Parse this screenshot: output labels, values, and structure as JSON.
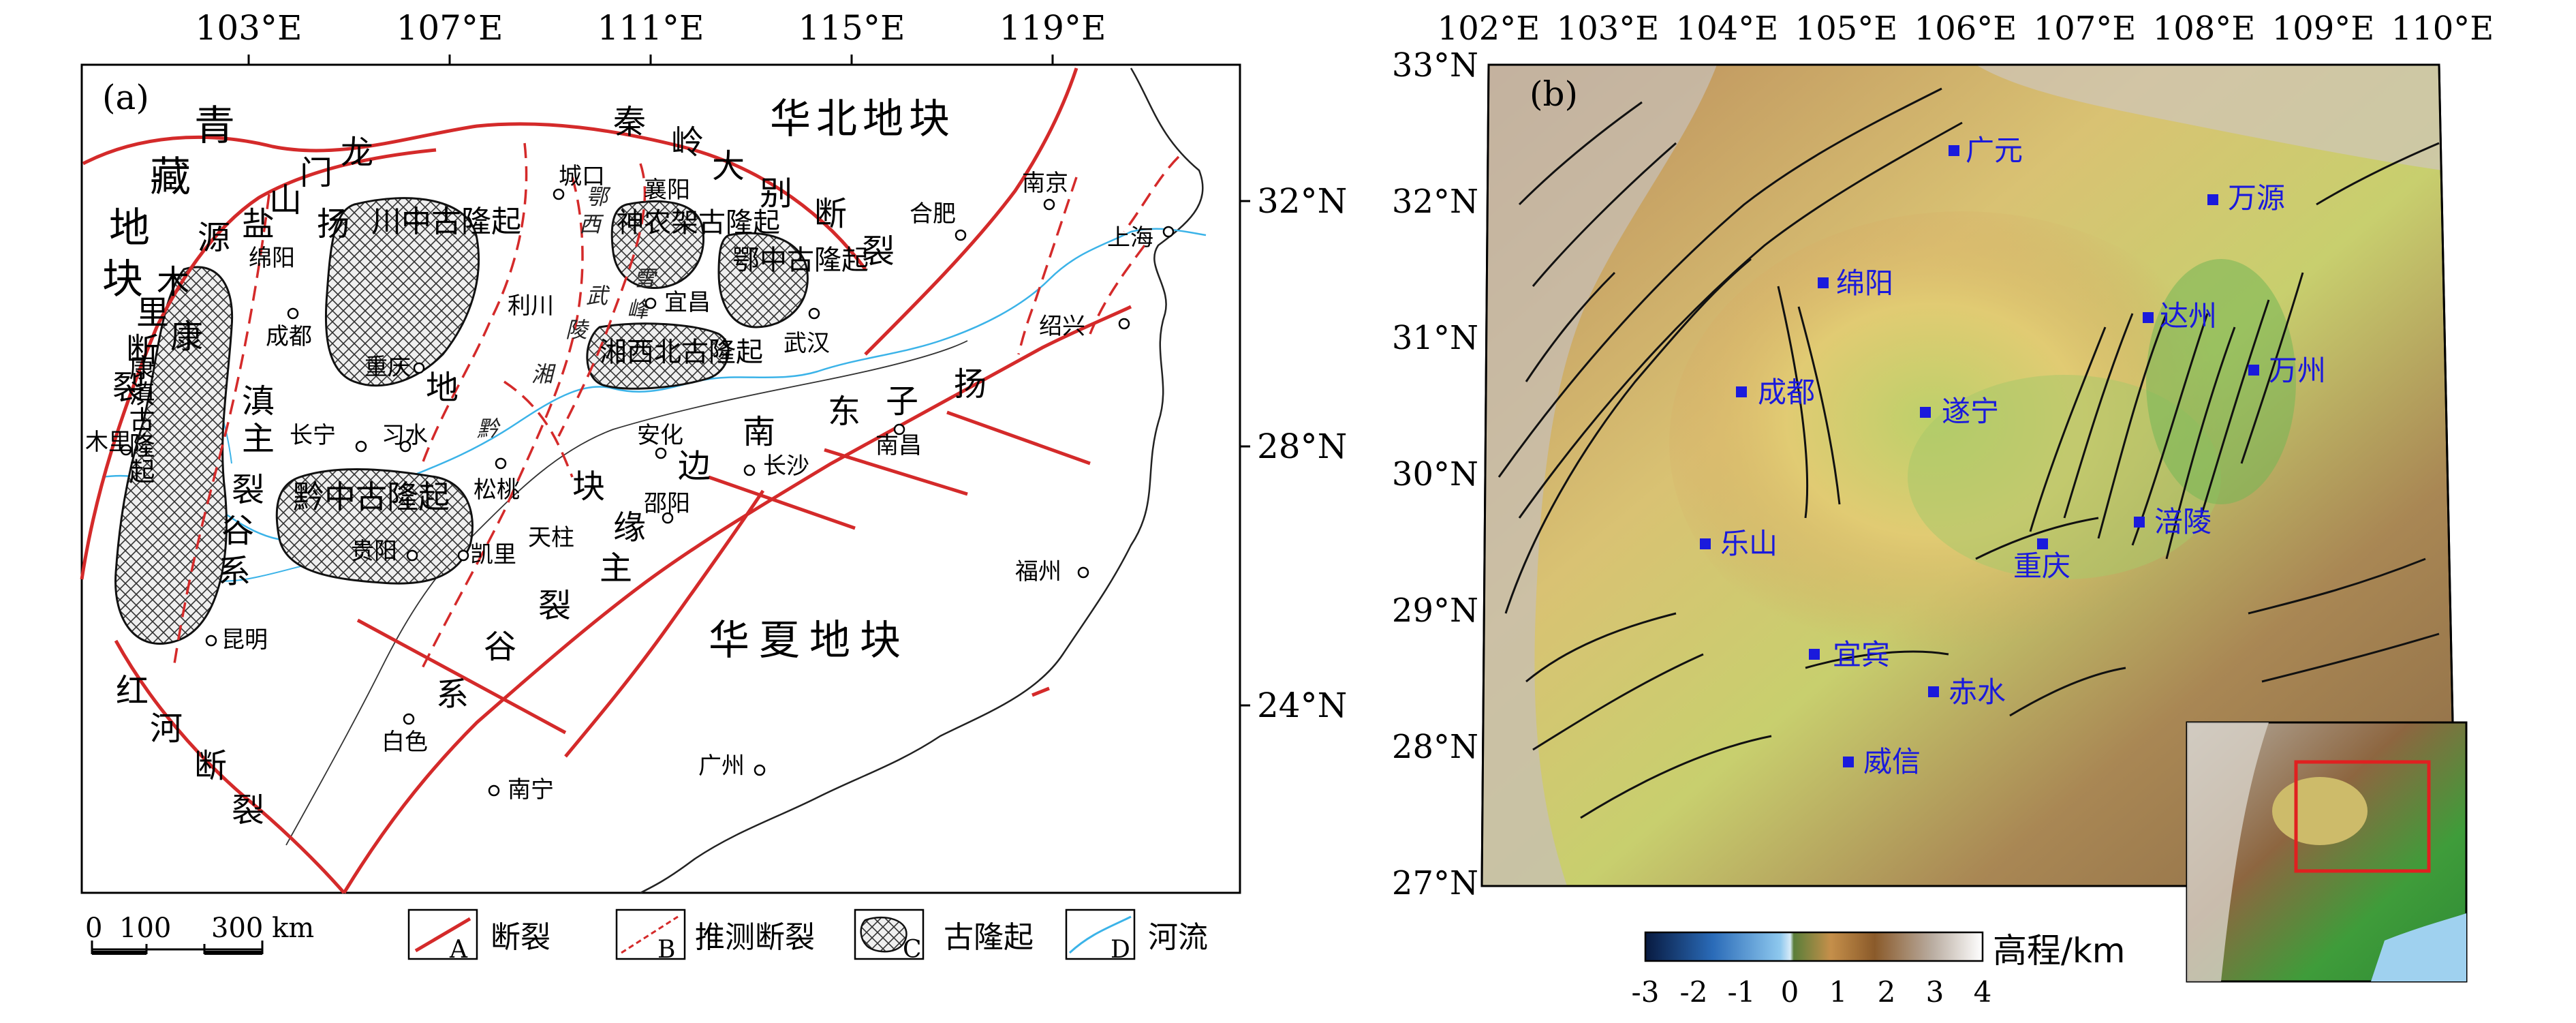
{
  "panel_a": {
    "label": "(a)",
    "lon_ticks": [
      "103°E",
      "107°E",
      "111°E",
      "115°E",
      "119°E"
    ],
    "lat_ticks": [
      "32°N",
      "28°N",
      "24°N"
    ],
    "blocks": [
      {
        "key": "qingzang_1",
        "text": "青"
      },
      {
        "key": "qingzang_2",
        "text": "藏"
      },
      {
        "key": "qingzang_3",
        "text": "地"
      },
      {
        "key": "qingzang_4",
        "text": "块"
      },
      {
        "key": "huabei",
        "text": "华北地块"
      },
      {
        "key": "huaxia",
        "text": "华夏地块"
      }
    ],
    "fault_labels": [
      "龙",
      "门",
      "山",
      "盐",
      "源",
      "扬",
      "秦",
      "岭",
      "大",
      "别",
      "断",
      "裂",
      "木",
      "里",
      "断",
      "裂",
      "康",
      "滇",
      "主",
      "裂",
      "谷",
      "系",
      "地",
      "块",
      "缘",
      "主",
      "裂",
      "谷",
      "系",
      "边",
      "东",
      "南",
      "子",
      "扬",
      "红",
      "河",
      "断",
      "裂",
      "鄂",
      "西",
      "雪",
      "峰",
      "武",
      "陵",
      "湘",
      "黔"
    ],
    "uplifts": [
      {
        "name": "川中古隆起"
      },
      {
        "name": "黔中古隆起"
      },
      {
        "name": "神农架古隆起"
      },
      {
        "name": "鄂中古隆起"
      },
      {
        "name": "湘西北古隆起"
      },
      {
        "name": "康滇古隆起"
      }
    ],
    "cities": [
      "绵阳",
      "成都",
      "重庆",
      "利川",
      "城口",
      "襄阳",
      "宜昌",
      "合肥",
      "南京",
      "上海",
      "武汉",
      "绍兴",
      "长宁",
      "习水",
      "安化",
      "长沙",
      "南昌",
      "松桃",
      "邵阳",
      "贵阳",
      "凯里",
      "天柱",
      "木里",
      "昆明",
      "福州",
      "白色",
      "南宁",
      "广州"
    ],
    "scale_bar": {
      "ticks": [
        "0",
        "100"
      ],
      "label": "300 km"
    },
    "legend": [
      {
        "letter": "A",
        "label": "断裂"
      },
      {
        "letter": "B",
        "label": "推测断裂"
      },
      {
        "letter": "C",
        "label": "古隆起"
      },
      {
        "letter": "D",
        "label": "河流"
      }
    ]
  },
  "panel_b": {
    "label": "(b)",
    "lon_ticks": [
      "102°E",
      "103°E",
      "104°E",
      "105°E",
      "106°E",
      "107°E",
      "108°E",
      "109°E",
      "110°E"
    ],
    "lat_ticks": [
      "33°N",
      "32°N",
      "31°N",
      "30°N",
      "29°N",
      "28°N",
      "27°N"
    ],
    "cities": [
      "广元",
      "万源",
      "绵阳",
      "达州",
      "成都",
      "遂宁",
      "万州",
      "乐山",
      "涪陵",
      "重庆",
      "宜宾",
      "赤水",
      "威信"
    ],
    "colorbar": {
      "title": "高程/km",
      "ticks": [
        "-3",
        "-2",
        "-1",
        "0",
        "1",
        "2",
        "3",
        "4"
      ],
      "range": [
        -3,
        4
      ]
    }
  },
  "colors": {
    "fault": "#d42a2a",
    "river": "#3bb3e8",
    "city_marker": "#1a1adc",
    "inset_box": "#e02020"
  }
}
